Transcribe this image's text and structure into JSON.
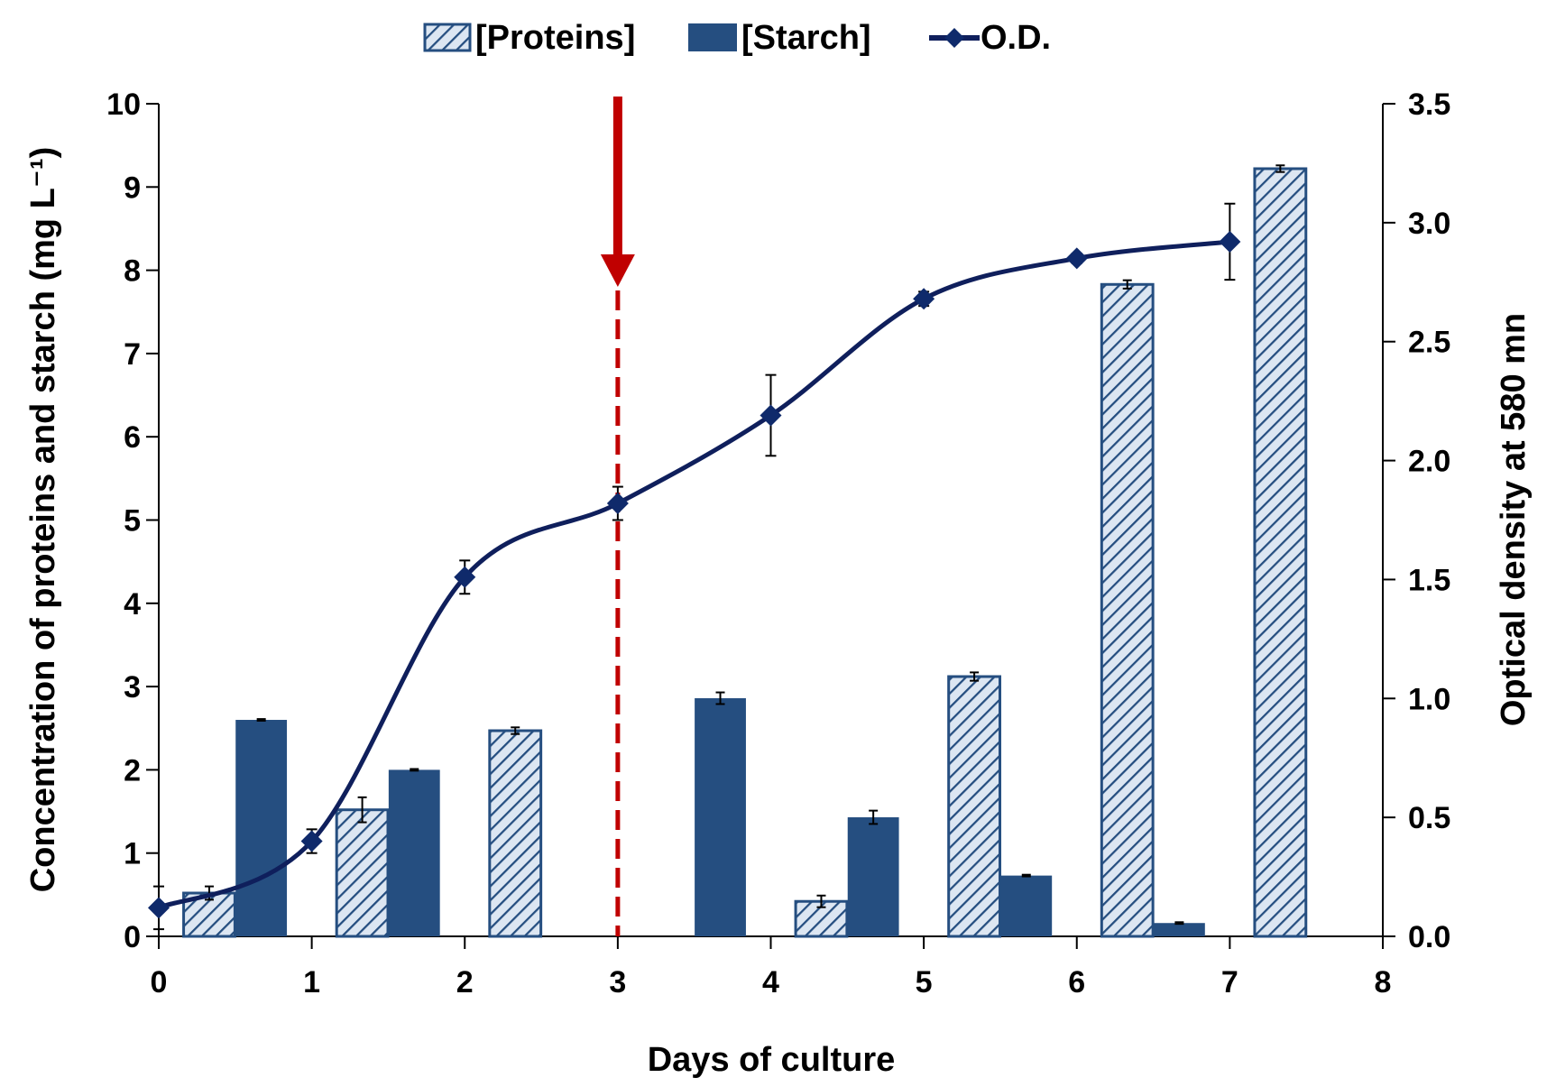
{
  "chart_data": {
    "type": "bar+line",
    "xlabel": "Days of culture",
    "ylabel_left": "Concentration of proteins and starch (mg L⁻¹)",
    "ylabel_right": "Optical density at 580 mn",
    "xlim": [
      0,
      8
    ],
    "ylim_left": [
      0,
      10
    ],
    "ylim_right": [
      0,
      3.5
    ],
    "x_ticks": [
      "0",
      "1",
      "2",
      "3",
      "4",
      "5",
      "6",
      "7",
      "8"
    ],
    "y_left_ticks": [
      "0",
      "1",
      "2",
      "3",
      "4",
      "5",
      "6",
      "7",
      "8",
      "9",
      "10"
    ],
    "y_right_ticks": [
      "0.0",
      "0.5",
      "1.0",
      "1.5",
      "2.0",
      "2.5",
      "3.0",
      "3.5"
    ],
    "legend_position": "top-center",
    "legend": {
      "proteins": "[Proteins]",
      "starch": "[Starch]",
      "od": "O.D."
    },
    "series": [
      {
        "name": "[Proteins]",
        "kind": "bar",
        "style": "hatched",
        "axis": "left",
        "x": [
          0,
          1,
          2,
          3,
          4,
          5,
          6,
          7
        ],
        "values": [
          0.52,
          1.52,
          2.47,
          null,
          0.42,
          3.12,
          7.83,
          9.22
        ],
        "errors": [
          0.08,
          0.15,
          0.04,
          null,
          0.07,
          0.05,
          0.05,
          0.04
        ]
      },
      {
        "name": "[Starch]",
        "kind": "bar",
        "style": "solid",
        "axis": "left",
        "x": [
          0,
          1,
          2,
          3,
          4,
          5,
          6,
          7
        ],
        "values": [
          2.6,
          2.0,
          null,
          2.86,
          1.43,
          0.73,
          0.16,
          null
        ],
        "errors": [
          0.01,
          0.01,
          null,
          0.07,
          0.08,
          0.01,
          0.01,
          null
        ]
      },
      {
        "name": "O.D.",
        "kind": "line",
        "smooth": true,
        "axis": "right",
        "x": [
          0,
          1,
          2,
          3,
          4,
          5,
          6,
          7
        ],
        "values": [
          0.12,
          0.4,
          1.51,
          1.82,
          2.19,
          2.68,
          2.85,
          2.92
        ],
        "errors": [
          0.09,
          0.05,
          0.07,
          0.07,
          0.17,
          0.03,
          0.02,
          0.16
        ]
      }
    ],
    "annotations": [
      {
        "type": "vertical-arrow-dashed-line",
        "x": 3,
        "color": "#c00000"
      }
    ],
    "colors": {
      "bar_fill": "#254e80",
      "bar_hatch_bg": "#dce6f2",
      "line": "#0f1f5c",
      "marker": "#0f2a6b",
      "arrow": "#c00000",
      "axis": "#000000"
    }
  }
}
